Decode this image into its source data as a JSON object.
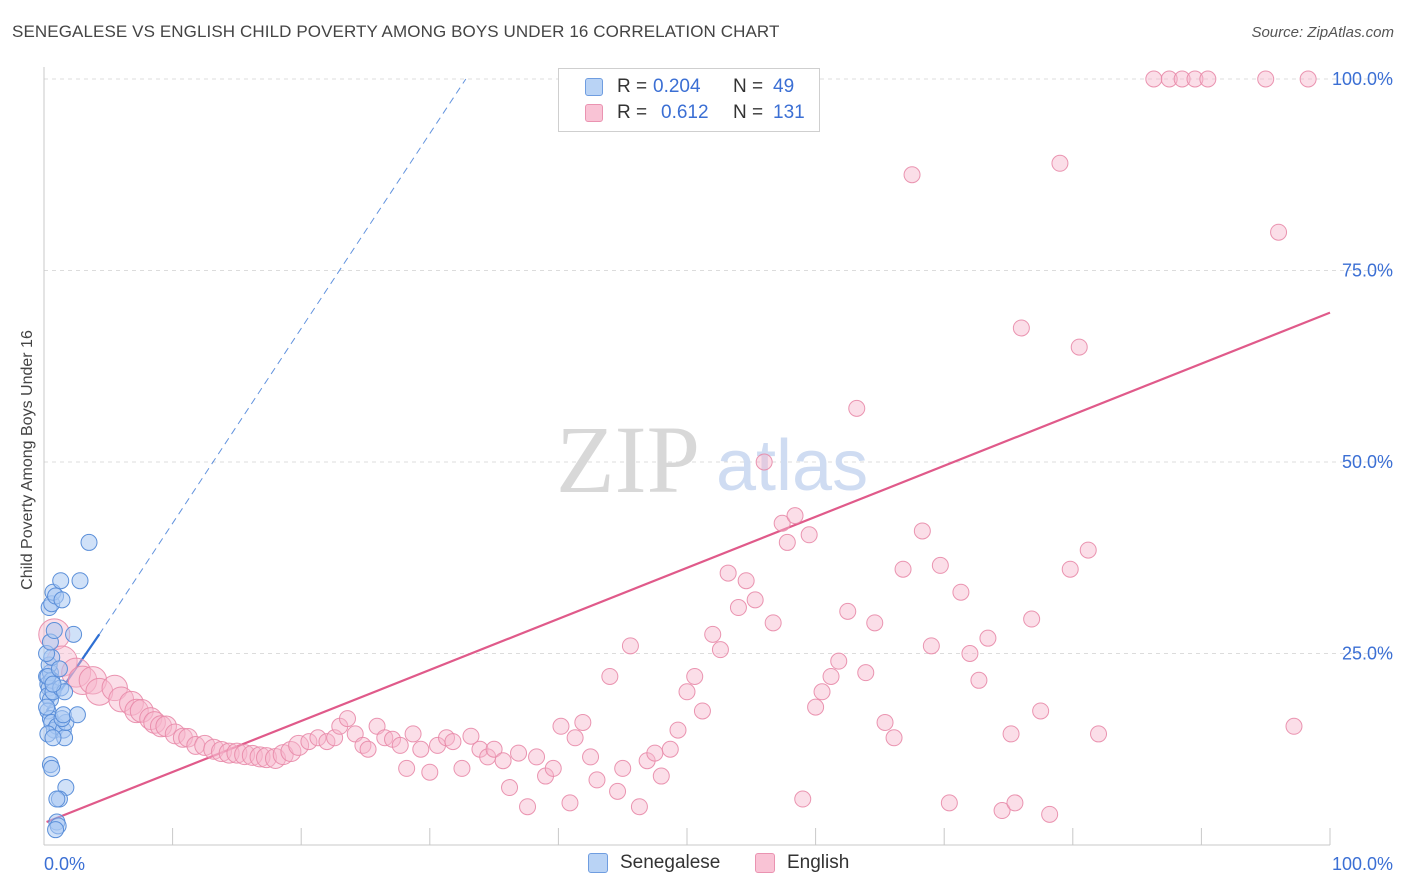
{
  "title": "SENEGALESE VS ENGLISH CHILD POVERTY AMONG BOYS UNDER 16 CORRELATION CHART",
  "source": "Source: ZipAtlas.com",
  "watermark": {
    "zip": "ZIP",
    "atlas": "atlas"
  },
  "legend": {
    "r_label": "R =",
    "n_label": "N =",
    "senegalese": {
      "r": "0.204",
      "n": "49"
    },
    "english": {
      "r": "0.612",
      "n": "131"
    }
  },
  "colors": {
    "senegalese_fill": "#a9c8f2",
    "senegalese_stroke": "#5b8fd9",
    "senegalese_line": "#2e6fd3",
    "english_fill": "#f7b6cb",
    "english_stroke": "#e889a8",
    "english_line": "#e05a8a",
    "tick_label": "#3b6fd4"
  },
  "chart_data": {
    "type": "scatter",
    "title": "SENEGALESE VS ENGLISH CHILD POVERTY AMONG BOYS UNDER 16 CORRELATION CHART",
    "xlabel": "",
    "ylabel": "Child Poverty Among Boys Under 16",
    "xlim": [
      0,
      100
    ],
    "ylim": [
      0,
      102
    ],
    "x_tick_labels": [
      "0.0%",
      "100.0%"
    ],
    "y_tick_labels": [
      "25.0%",
      "50.0%",
      "75.0%",
      "100.0%"
    ],
    "y_ticks": [
      25,
      50,
      75,
      100
    ],
    "grid": true,
    "legend_position": "top-center",
    "series": [
      {
        "name": "Senegalese",
        "r": 0.204,
        "n": 49,
        "points": [
          [
            0.2,
            22
          ],
          [
            0.3,
            21
          ],
          [
            0.4,
            20.5
          ],
          [
            0.5,
            22.5
          ],
          [
            0.6,
            21.5
          ],
          [
            0.3,
            19.5
          ],
          [
            0.5,
            19
          ],
          [
            0.7,
            20
          ],
          [
            0.4,
            23.5
          ],
          [
            0.6,
            24.5
          ],
          [
            0.2,
            25
          ],
          [
            0.5,
            26.5
          ],
          [
            0.8,
            28
          ],
          [
            0.4,
            31
          ],
          [
            0.6,
            31.5
          ],
          [
            0.7,
            33
          ],
          [
            0.9,
            32.5
          ],
          [
            1.4,
            32
          ],
          [
            1.3,
            34.5
          ],
          [
            2.8,
            34.5
          ],
          [
            3.5,
            39.5
          ],
          [
            2.3,
            27.5
          ],
          [
            0.3,
            17.5
          ],
          [
            0.5,
            16.5
          ],
          [
            0.6,
            16
          ],
          [
            0.8,
            15
          ],
          [
            1.0,
            15.5
          ],
          [
            1.5,
            15
          ],
          [
            1.6,
            14
          ],
          [
            1.7,
            16
          ],
          [
            1.4,
            16.5
          ],
          [
            1.5,
            17
          ],
          [
            2.6,
            17
          ],
          [
            0.2,
            18
          ],
          [
            0.3,
            14.5
          ],
          [
            0.7,
            14
          ],
          [
            0.5,
            10.5
          ],
          [
            0.6,
            10
          ],
          [
            1.7,
            7.5
          ],
          [
            1.2,
            6
          ],
          [
            1.0,
            6
          ],
          [
            1.0,
            3
          ],
          [
            1.1,
            2.5
          ],
          [
            0.9,
            2
          ],
          [
            1.3,
            20.5
          ],
          [
            1.6,
            20
          ],
          [
            0.3,
            22
          ],
          [
            0.7,
            21
          ],
          [
            1.2,
            23
          ]
        ],
        "trend": {
          "x": [
            0.2,
            4.3
          ],
          "y": [
            17.5,
            27.5
          ]
        },
        "trend_extension": {
          "x": [
            4.3,
            32.8
          ],
          "y": [
            27.5,
            100
          ]
        }
      },
      {
        "name": "English",
        "r": 0.612,
        "n": 131,
        "points": [
          [
            0.8,
            27.5
          ],
          [
            1.4,
            24
          ],
          [
            2.5,
            22.5
          ],
          [
            3.0,
            21.5
          ],
          [
            3.8,
            21.5
          ],
          [
            4.3,
            20
          ],
          [
            5.5,
            20.5
          ],
          [
            6.0,
            19
          ],
          [
            6.8,
            18.5
          ],
          [
            7.2,
            17.5
          ],
          [
            7.6,
            17.5
          ],
          [
            8.3,
            16.5
          ],
          [
            8.6,
            16
          ],
          [
            9.1,
            15.5
          ],
          [
            9.5,
            15.5
          ],
          [
            10.2,
            14.5
          ],
          [
            10.8,
            14
          ],
          [
            11.2,
            14
          ],
          [
            11.8,
            13
          ],
          [
            12.5,
            13
          ],
          [
            13.2,
            12.5
          ],
          [
            13.8,
            12.2
          ],
          [
            14.4,
            12
          ],
          [
            15.0,
            12
          ],
          [
            15.6,
            11.8
          ],
          [
            16.2,
            11.7
          ],
          [
            16.8,
            11.5
          ],
          [
            17.3,
            11.4
          ],
          [
            18.0,
            11.3
          ],
          [
            18.6,
            11.8
          ],
          [
            19.2,
            12.2
          ],
          [
            19.8,
            13
          ],
          [
            20.6,
            13.5
          ],
          [
            21.3,
            14
          ],
          [
            22.0,
            13.5
          ],
          [
            22.6,
            14
          ],
          [
            23.0,
            15.5
          ],
          [
            23.6,
            16.5
          ],
          [
            24.2,
            14.5
          ],
          [
            24.8,
            13
          ],
          [
            25.2,
            12.5
          ],
          [
            25.9,
            15.5
          ],
          [
            26.5,
            14
          ],
          [
            27.1,
            13.8
          ],
          [
            27.7,
            13
          ],
          [
            28.2,
            10
          ],
          [
            28.7,
            14.5
          ],
          [
            29.3,
            12.5
          ],
          [
            30.0,
            9.5
          ],
          [
            30.6,
            13
          ],
          [
            31.3,
            14
          ],
          [
            31.8,
            13.5
          ],
          [
            32.5,
            10
          ],
          [
            33.2,
            14.2
          ],
          [
            33.9,
            12.5
          ],
          [
            34.5,
            11.5
          ],
          [
            35.0,
            12.5
          ],
          [
            35.7,
            11
          ],
          [
            36.2,
            7.5
          ],
          [
            36.9,
            12
          ],
          [
            37.6,
            5
          ],
          [
            38.3,
            11.5
          ],
          [
            39.0,
            9
          ],
          [
            39.6,
            10
          ],
          [
            40.2,
            15.5
          ],
          [
            40.9,
            5.5
          ],
          [
            41.3,
            14
          ],
          [
            41.9,
            16
          ],
          [
            42.5,
            11.5
          ],
          [
            43.0,
            8.5
          ],
          [
            44.0,
            22
          ],
          [
            44.6,
            7
          ],
          [
            45.0,
            10
          ],
          [
            45.6,
            26
          ],
          [
            46.3,
            5
          ],
          [
            46.9,
            11
          ],
          [
            47.5,
            12
          ],
          [
            48.0,
            9
          ],
          [
            48.7,
            12.5
          ],
          [
            49.3,
            15
          ],
          [
            50.0,
            20
          ],
          [
            50.6,
            22
          ],
          [
            51.2,
            17.5
          ],
          [
            52.0,
            27.5
          ],
          [
            52.6,
            25.5
          ],
          [
            53.2,
            35.5
          ],
          [
            54.0,
            31
          ],
          [
            54.6,
            34.5
          ],
          [
            55.3,
            32
          ],
          [
            56.0,
            50
          ],
          [
            56.7,
            29
          ],
          [
            57.4,
            42
          ],
          [
            57.8,
            39.5
          ],
          [
            58.4,
            43
          ],
          [
            59.0,
            6
          ],
          [
            59.5,
            40.5
          ],
          [
            60.0,
            18
          ],
          [
            60.5,
            20
          ],
          [
            61.2,
            22
          ],
          [
            61.8,
            24
          ],
          [
            62.5,
            30.5
          ],
          [
            63.2,
            57
          ],
          [
            63.9,
            22.5
          ],
          [
            64.6,
            29
          ],
          [
            65.4,
            16
          ],
          [
            66.1,
            14
          ],
          [
            66.8,
            36
          ],
          [
            67.5,
            87.5
          ],
          [
            68.3,
            41
          ],
          [
            69.0,
            26
          ],
          [
            69.7,
            36.5
          ],
          [
            70.4,
            5.5
          ],
          [
            71.3,
            33
          ],
          [
            72.0,
            25
          ],
          [
            72.7,
            21.5
          ],
          [
            73.4,
            27
          ],
          [
            74.5,
            4.5
          ],
          [
            75.2,
            14.5
          ],
          [
            76.0,
            67.5
          ],
          [
            76.8,
            29.5
          ],
          [
            77.5,
            17.5
          ],
          [
            78.2,
            4
          ],
          [
            79.0,
            89
          ],
          [
            79.8,
            36
          ],
          [
            80.5,
            65
          ],
          [
            81.2,
            38.5
          ],
          [
            82.0,
            14.5
          ],
          [
            86.3,
            100
          ],
          [
            87.5,
            100
          ],
          [
            88.5,
            100
          ],
          [
            89.5,
            100
          ],
          [
            90.5,
            100
          ],
          [
            95.0,
            100
          ],
          [
            96.0,
            80
          ],
          [
            97.2,
            15.5
          ],
          [
            98.3,
            100
          ],
          [
            75.5,
            5.5
          ]
        ],
        "trend": {
          "x": [
            0.2,
            100
          ],
          "y": [
            3,
            69.5
          ]
        }
      }
    ]
  }
}
